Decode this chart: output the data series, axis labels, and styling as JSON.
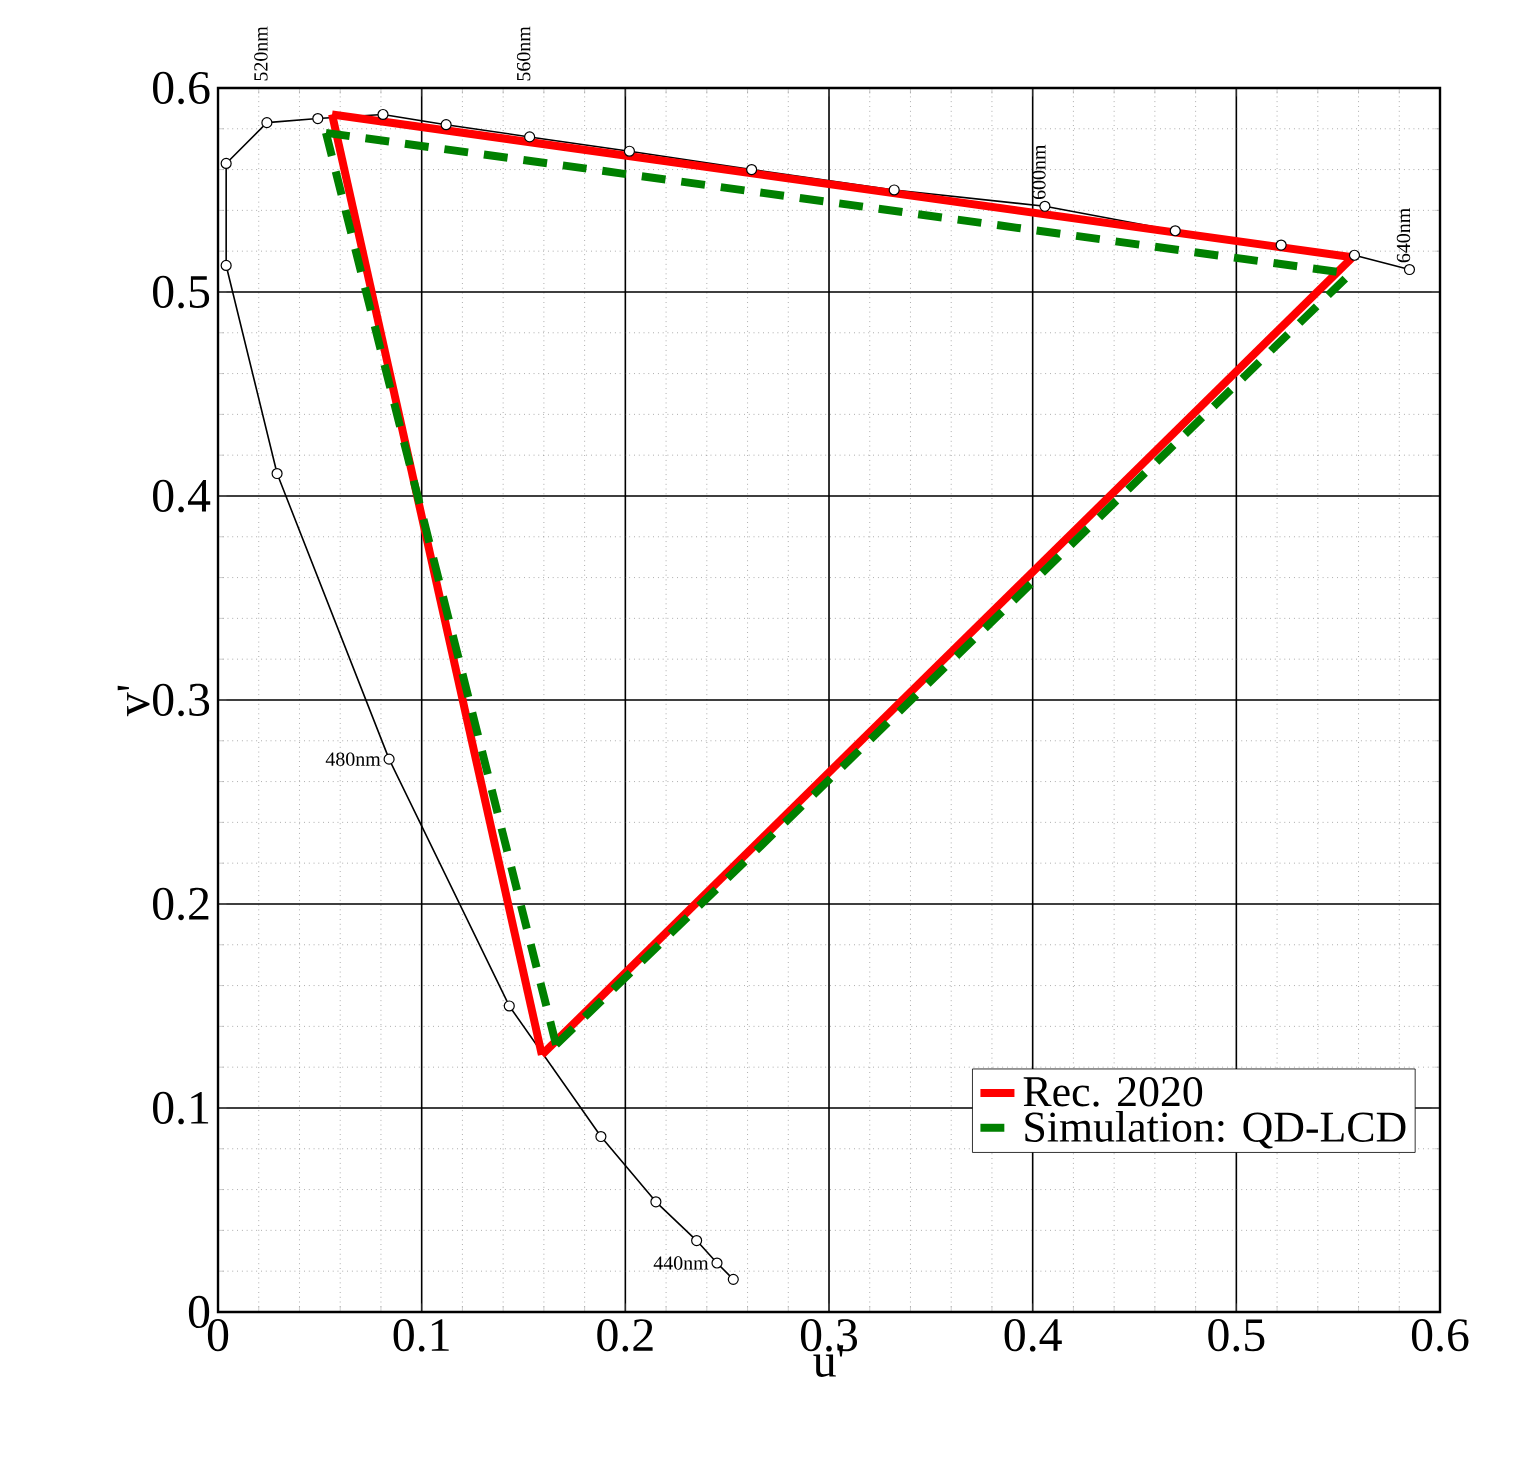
{
  "chart_data": {
    "type": "line",
    "xlabel": "u'",
    "ylabel": "v'",
    "xlim": [
      0,
      0.6
    ],
    "ylim": [
      0,
      0.6
    ],
    "xticks": [
      0,
      0.1,
      0.2,
      0.3,
      0.4,
      0.5,
      0.6
    ],
    "yticks": [
      0,
      0.1,
      0.2,
      0.3,
      0.4,
      0.5,
      0.6
    ],
    "grid": true,
    "legend": "bottom right",
    "series": [
      {
        "color": "#000000",
        "marker": "circle",
        "line_style": "solid",
        "x": [
          0.253,
          0.245,
          0.235,
          0.215,
          0.188,
          0.143,
          0.084,
          0.029,
          0.004,
          0.004,
          0.024,
          0.049,
          0.081,
          0.112,
          0.153,
          0.202,
          0.262,
          0.332,
          0.406,
          0.47,
          0.522,
          0.558,
          0.585
        ],
        "values": [
          0.016,
          0.024,
          0.035,
          0.054,
          0.086,
          0.15,
          0.271,
          0.411,
          0.513,
          0.563,
          0.583,
          0.585,
          0.587,
          0.582,
          0.576,
          0.569,
          0.56,
          0.55,
          0.542,
          0.53,
          0.523,
          0.518,
          0.511
        ]
      },
      {
        "name": "Rec. 2020",
        "color": "#ff0000",
        "marker": "none",
        "line_style": "solid",
        "x": [
          0.056,
          0.557
        ],
        "values": [
          0.587,
          0.517
        ]
      },
      {
        "color": "#ff0000",
        "marker": "none",
        "line_style": "solid",
        "x": [
          0.056,
          0.159
        ],
        "values": [
          0.587,
          0.126
        ]
      },
      {
        "color": "#ff0000",
        "marker": "none",
        "line_style": "solid",
        "x": [
          0.159,
          0.557
        ],
        "values": [
          0.126,
          0.517
        ]
      },
      {
        "name": "Simulation: QD-LCD",
        "color": "#008000",
        "marker": "none",
        "line_style": "dashed",
        "x": [
          0.053,
          0.556
        ],
        "values": [
          0.578,
          0.509
        ]
      },
      {
        "color": "#008000",
        "marker": "none",
        "line_style": "dashed",
        "x": [
          0.053,
          0.166
        ],
        "values": [
          0.578,
          0.131
        ]
      },
      {
        "color": "#008000",
        "marker": "none",
        "line_style": "dashed",
        "x": [
          0.166,
          0.556
        ],
        "values": [
          0.131,
          0.509
        ]
      }
    ],
    "annotations": [
      {
        "text": "520nm",
        "x": 0.024,
        "y": 0.583
      },
      {
        "text": "560nm",
        "x": 0.153,
        "y": 0.576
      },
      {
        "text": "600nm",
        "x": 0.406,
        "y": 0.542
      },
      {
        "text": "640nm",
        "x": 0.585,
        "y": 0.511
      },
      {
        "text": "480nm",
        "x": 0.084,
        "y": 0.271
      },
      {
        "text": "440nm",
        "x": 0.245,
        "y": 0.024
      }
    ]
  }
}
